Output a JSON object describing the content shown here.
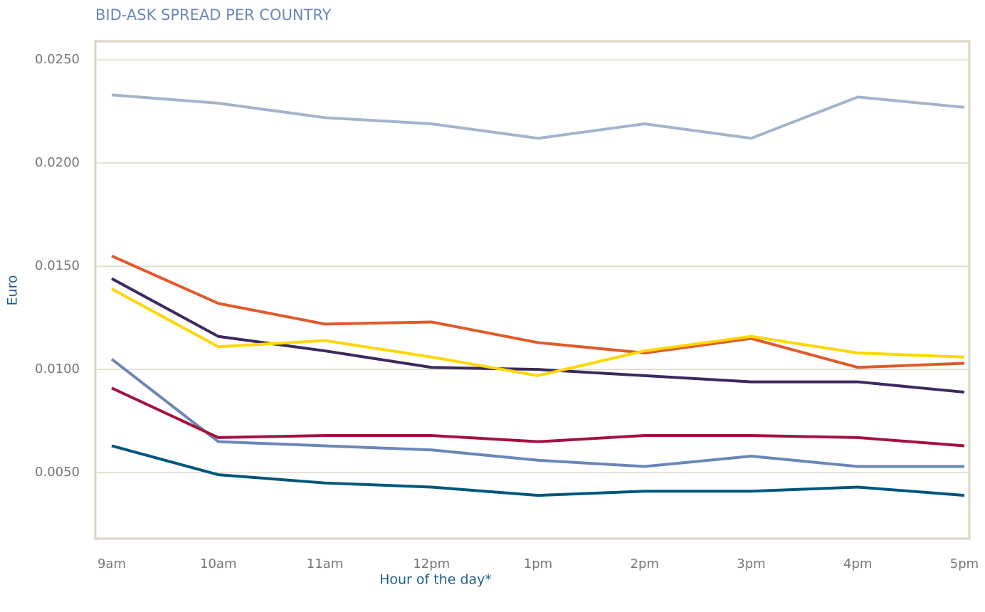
{
  "chart_data": {
    "type": "line",
    "title": "BID-ASK SPREAD PER COUNTRY",
    "x_label": "Hour of the day*",
    "y_label": "Euro",
    "categories": [
      "9am",
      "10am",
      "11am",
      "12pm",
      "1pm",
      "2pm",
      "3pm",
      "4pm",
      "5pm"
    ],
    "ylim": [
      0.0018,
      0.0259
    ],
    "yticks": [
      {
        "value": 0.005,
        "label": "0.0050"
      },
      {
        "value": 0.01,
        "label": "0.0100"
      },
      {
        "value": 0.015,
        "label": "0.0150"
      },
      {
        "value": 0.02,
        "label": "0.0200"
      },
      {
        "value": 0.025,
        "label": "0.0250"
      }
    ],
    "grid": true,
    "series": [
      {
        "color": "#a3b4cc",
        "values": [
          0.0233,
          0.0229,
          0.0222,
          0.0219,
          0.0212,
          0.0219,
          0.0212,
          0.0232,
          0.0227
        ]
      },
      {
        "color": "#e05a2b",
        "values": [
          0.0155,
          0.0132,
          0.0122,
          0.0123,
          0.0113,
          0.0108,
          0.0115,
          0.0101,
          0.0103
        ]
      },
      {
        "color": "#3b2a5e",
        "values": [
          0.0144,
          0.0116,
          0.0109,
          0.0101,
          0.01,
          0.0097,
          0.0094,
          0.0094,
          0.0089
        ]
      },
      {
        "color": "#ffd700",
        "values": [
          0.0139,
          0.0111,
          0.0114,
          0.0106,
          0.0097,
          0.0109,
          0.0116,
          0.0108,
          0.0106
        ]
      },
      {
        "color": "#6b87b8",
        "values": [
          0.0105,
          0.0065,
          0.0063,
          0.0061,
          0.0056,
          0.0053,
          0.0058,
          0.0053,
          0.0053
        ]
      },
      {
        "color": "#a3123f",
        "values": [
          0.0091,
          0.0067,
          0.0068,
          0.0068,
          0.0065,
          0.0068,
          0.0068,
          0.0067,
          0.0063
        ]
      },
      {
        "color": "#00567d",
        "values": [
          0.0063,
          0.0049,
          0.0045,
          0.0043,
          0.0039,
          0.0041,
          0.0041,
          0.0043,
          0.0039
        ]
      }
    ]
  }
}
